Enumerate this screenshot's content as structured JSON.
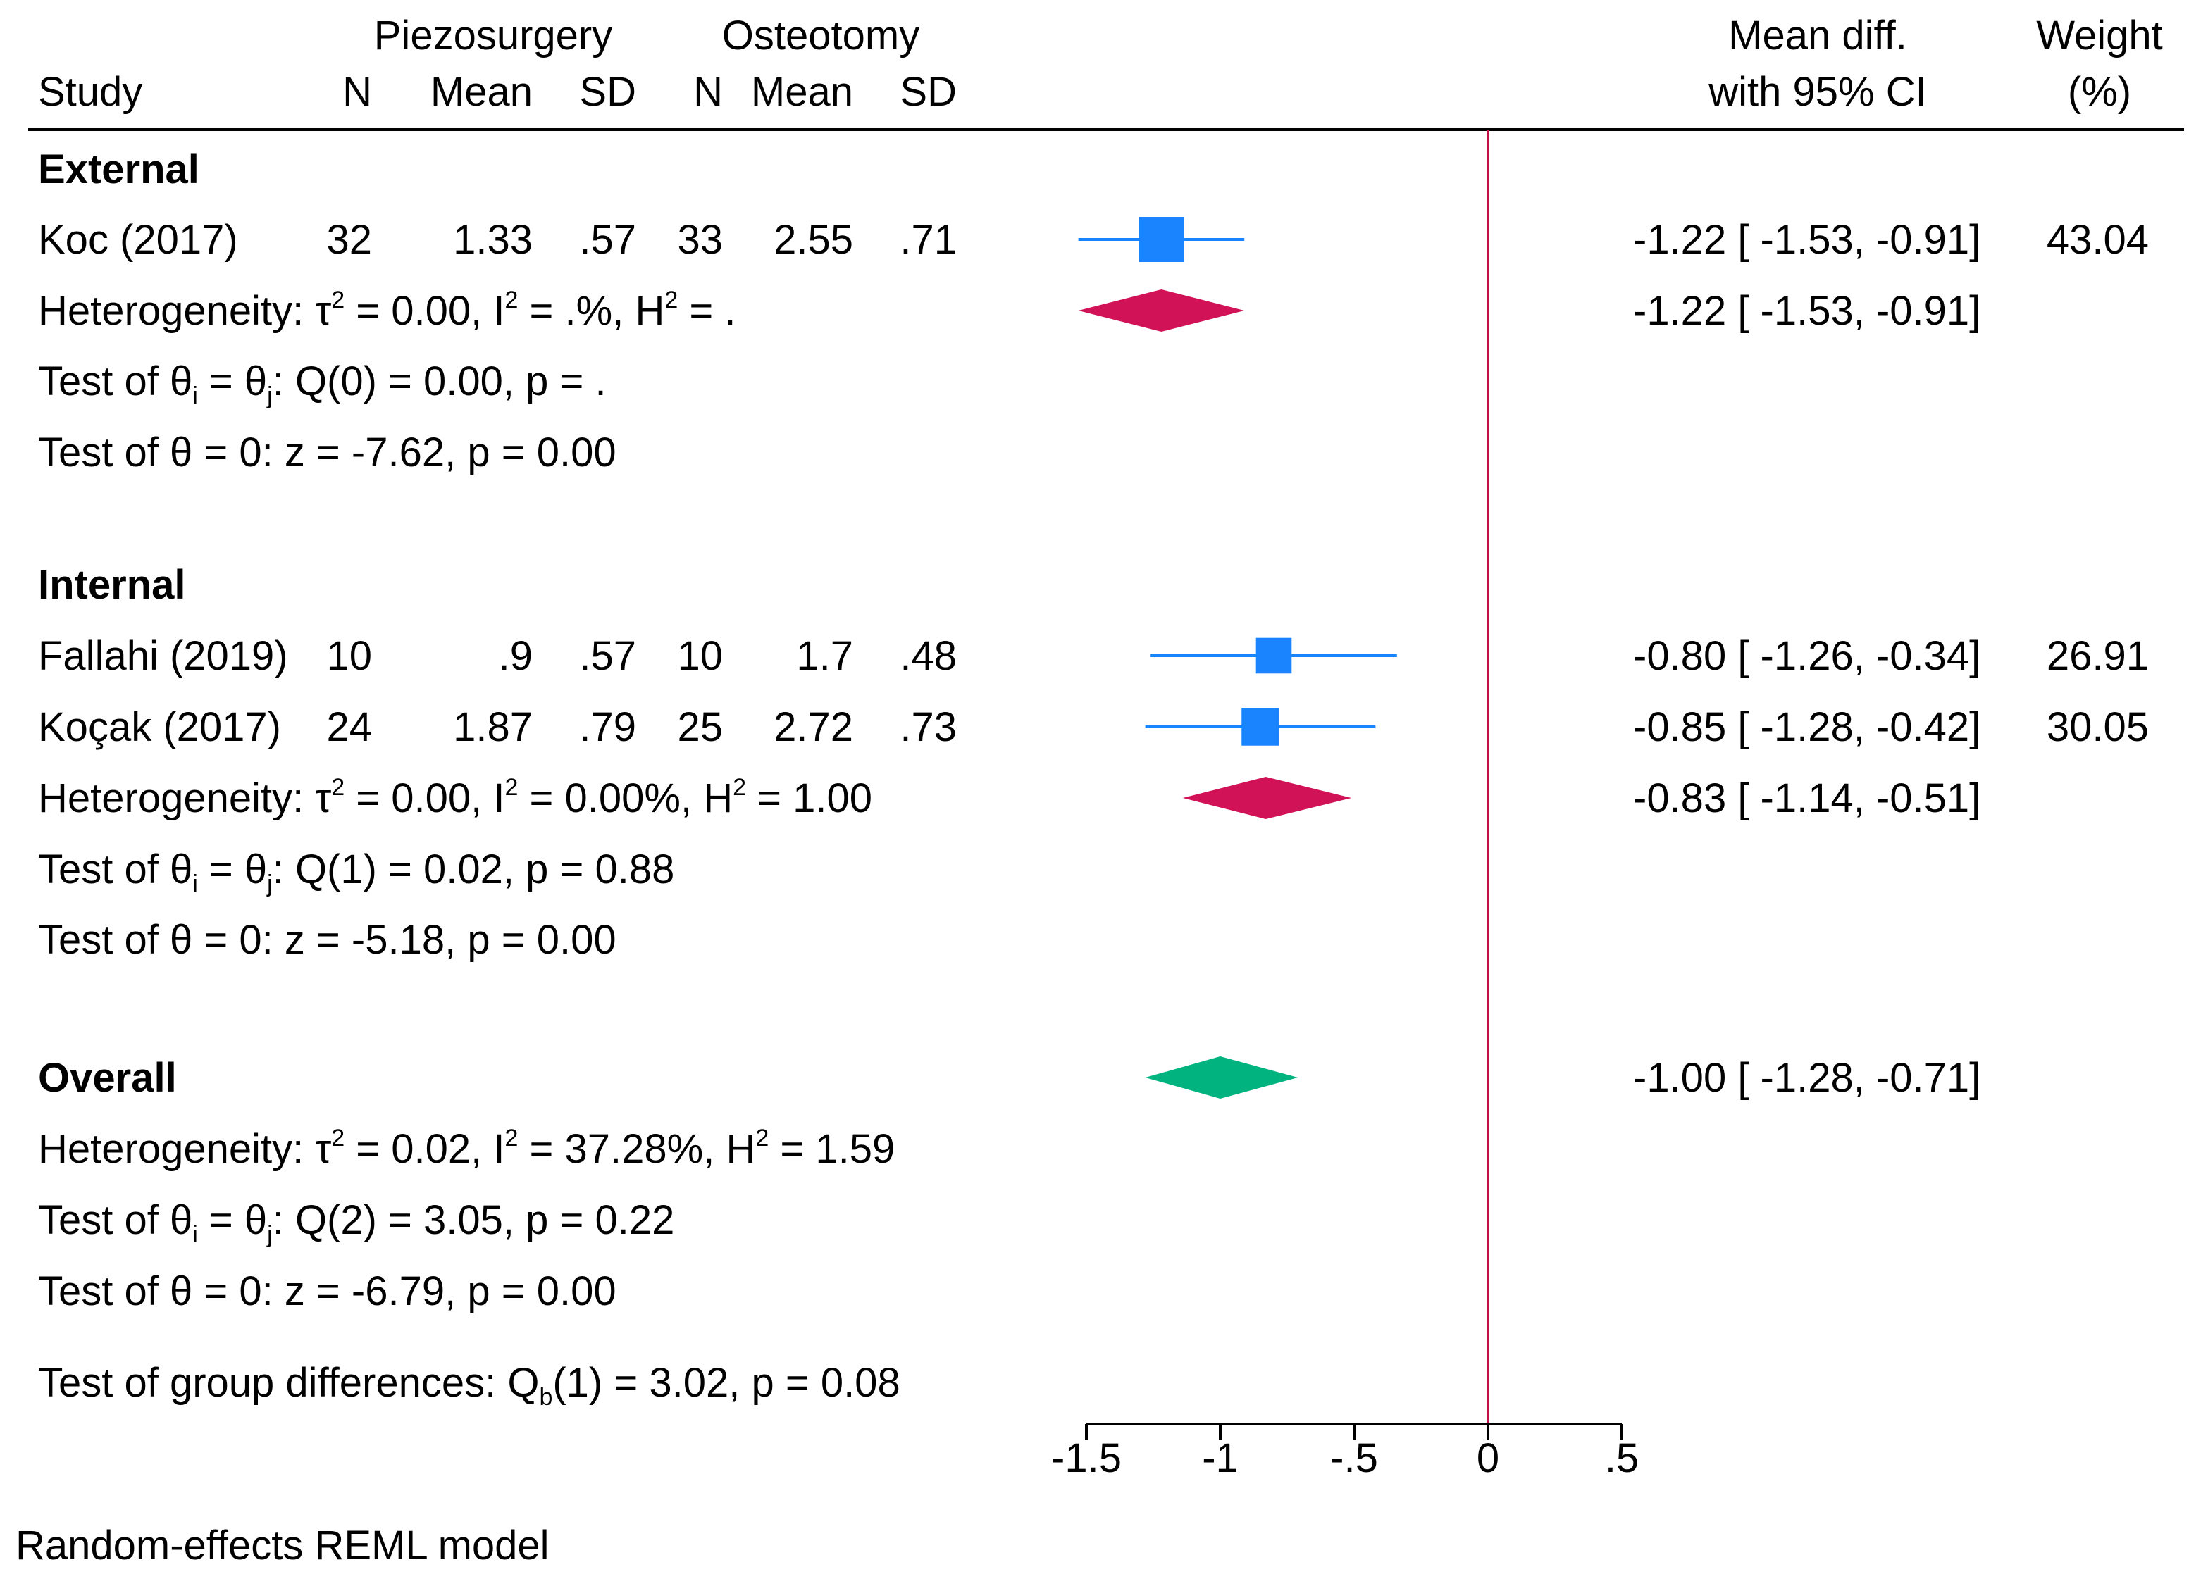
{
  "chart_data": {
    "type": "forest",
    "header": {
      "group1": "Piezosurgery",
      "group2": "Osteotomy",
      "study": "Study",
      "n": "N",
      "mean": "Mean",
      "sd": "SD",
      "md_line1": "Mean diff.",
      "md_line2": "with 95% CI",
      "weight_line1": "Weight",
      "weight_line2": "(%)"
    },
    "subgroups": [
      {
        "label": "External",
        "studies": [
          {
            "name": "Koc (2017)",
            "n1": "32",
            "mean1": "1.33",
            "sd1": ".57",
            "n2": "33",
            "mean2": "2.55",
            "sd2": ".71",
            "md": -1.22,
            "lo": -1.53,
            "hi": -0.91,
            "ci_text": "-1.22 [ -1.53,  -0.91]",
            "weight": 43.04,
            "weight_text": "43.04"
          }
        ],
        "pooled": {
          "md": -1.22,
          "lo": -1.53,
          "hi": -0.91,
          "ci_text": "-1.22 [ -1.53,  -0.91]"
        },
        "het": {
          "tau2": "0.00",
          "i2": ".%",
          "h2": "."
        },
        "q": {
          "df": "0",
          "stat": "0.00",
          "p": "."
        },
        "z": {
          "stat": "-7.62",
          "p": "0.00"
        }
      },
      {
        "label": "Internal",
        "studies": [
          {
            "name": "Fallahi (2019)",
            "n1": "10",
            "mean1": ".9",
            "sd1": ".57",
            "n2": "10",
            "mean2": "1.7",
            "sd2": ".48",
            "md": -0.8,
            "lo": -1.26,
            "hi": -0.34,
            "ci_text": "-0.80 [ -1.26,  -0.34]",
            "weight": 26.91,
            "weight_text": "26.91"
          },
          {
            "name": "Koçak (2017)",
            "n1": "24",
            "mean1": "1.87",
            "sd1": ".79",
            "n2": "25",
            "mean2": "2.72",
            "sd2": ".73",
            "md": -0.85,
            "lo": -1.28,
            "hi": -0.42,
            "ci_text": "-0.85 [ -1.28,  -0.42]",
            "weight": 30.05,
            "weight_text": "30.05"
          }
        ],
        "pooled": {
          "md": -0.83,
          "lo": -1.14,
          "hi": -0.51,
          "ci_text": "-0.83 [ -1.14,  -0.51]"
        },
        "het": {
          "tau2": "0.00",
          "i2": "0.00%",
          "h2": "1.00"
        },
        "q": {
          "df": "1",
          "stat": "0.02",
          "p": "0.88"
        },
        "z": {
          "stat": "-5.18",
          "p": "0.00"
        }
      }
    ],
    "overall": {
      "label": "Overall",
      "md": -1.0,
      "lo": -1.28,
      "hi": -0.71,
      "ci_text": "-1.00 [ -1.28,  -0.71]",
      "het": {
        "tau2": "0.02",
        "i2": "37.28%",
        "h2": "1.59"
      },
      "q": {
        "df": "2",
        "stat": "3.05",
        "p": "0.22"
      },
      "z": {
        "stat": "-6.79",
        "p": "0.00"
      }
    },
    "group_test": {
      "df": "1",
      "stat": "3.02",
      "p": "0.08"
    },
    "x_axis": {
      "ticks": [
        -1.5,
        -1,
        -0.5,
        0,
        0.5
      ],
      "tick_labels": [
        "-1.5",
        "-1",
        "-.5",
        "0",
        ".5"
      ],
      "range": [
        -1.5,
        0.5
      ],
      "reference": 0
    },
    "footnote": "Random-effects REML model",
    "colors": {
      "study": "#1a84ff",
      "subgroup_diamond": "#d11257",
      "overall_diamond": "#00b37f",
      "reference_line": "#c01048"
    }
  }
}
